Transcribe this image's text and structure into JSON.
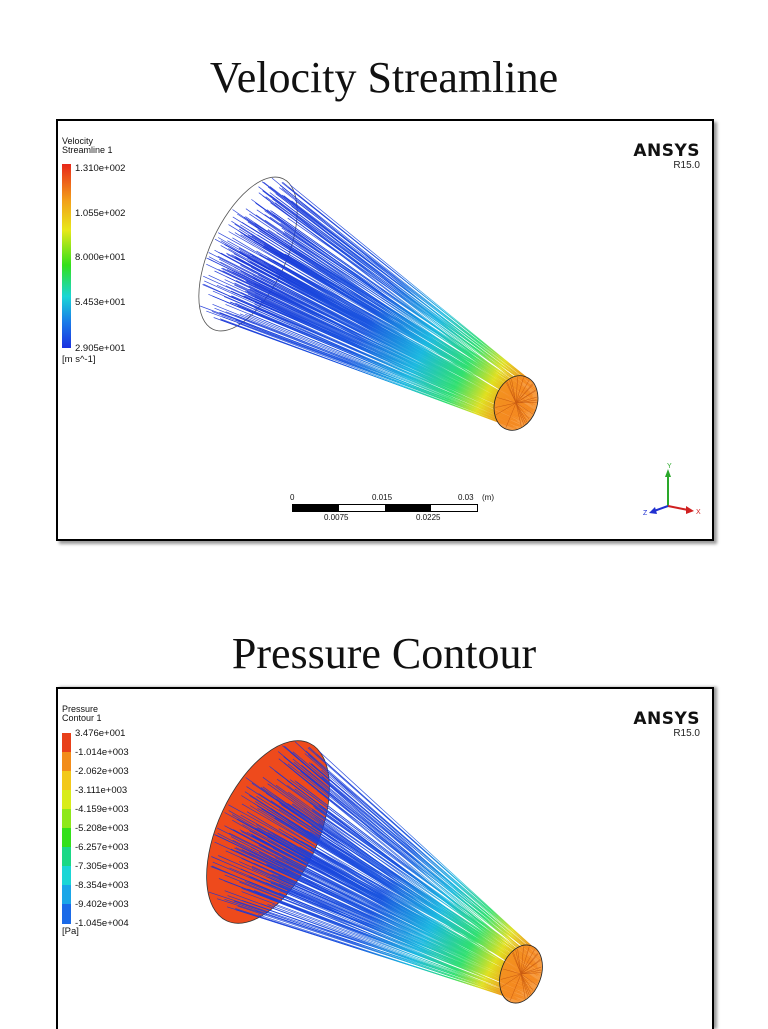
{
  "headings": {
    "velocity": "Velocity Streamline",
    "pressure": "Pressure Contour"
  },
  "velocity_panel": {
    "legend_title_line1": "Velocity",
    "legend_title_line2": "Streamline 1",
    "legend_values": [
      "1.310e+002",
      "1.055e+002",
      "8.000e+001",
      "5.453e+001",
      "2.905e+001"
    ],
    "unit": "[m s^-1]",
    "brand": "ANSYS",
    "version": "R15.0",
    "scale": {
      "top_labels": [
        "0",
        "0.015",
        "0.03"
      ],
      "unit": "(m)",
      "bottom_labels": [
        "0.0075",
        "0.0225"
      ]
    },
    "axes": {
      "y": "Y",
      "x": "X",
      "z": "Z"
    }
  },
  "pressure_panel": {
    "legend_title_line1": "Pressure",
    "legend_title_line2": "Contour 1",
    "legend_values": [
      "3.476e+001",
      "-1.014e+003",
      "-2.062e+003",
      "-3.111e+003",
      "-4.159e+003",
      "-5.208e+003",
      "-6.257e+003",
      "-7.305e+003",
      "-8.354e+003",
      "-9.402e+003",
      "-1.045e+004"
    ],
    "unit": "[Pa]",
    "brand": "ANSYS",
    "version": "R15.0"
  },
  "colors": {
    "scale_high": "#e8281a",
    "scale_mid": "#33e01a",
    "scale_low": "#1a3fe0",
    "streamline_inlet": "#1a35d8",
    "streamline_outlet": "#ff7a10"
  }
}
